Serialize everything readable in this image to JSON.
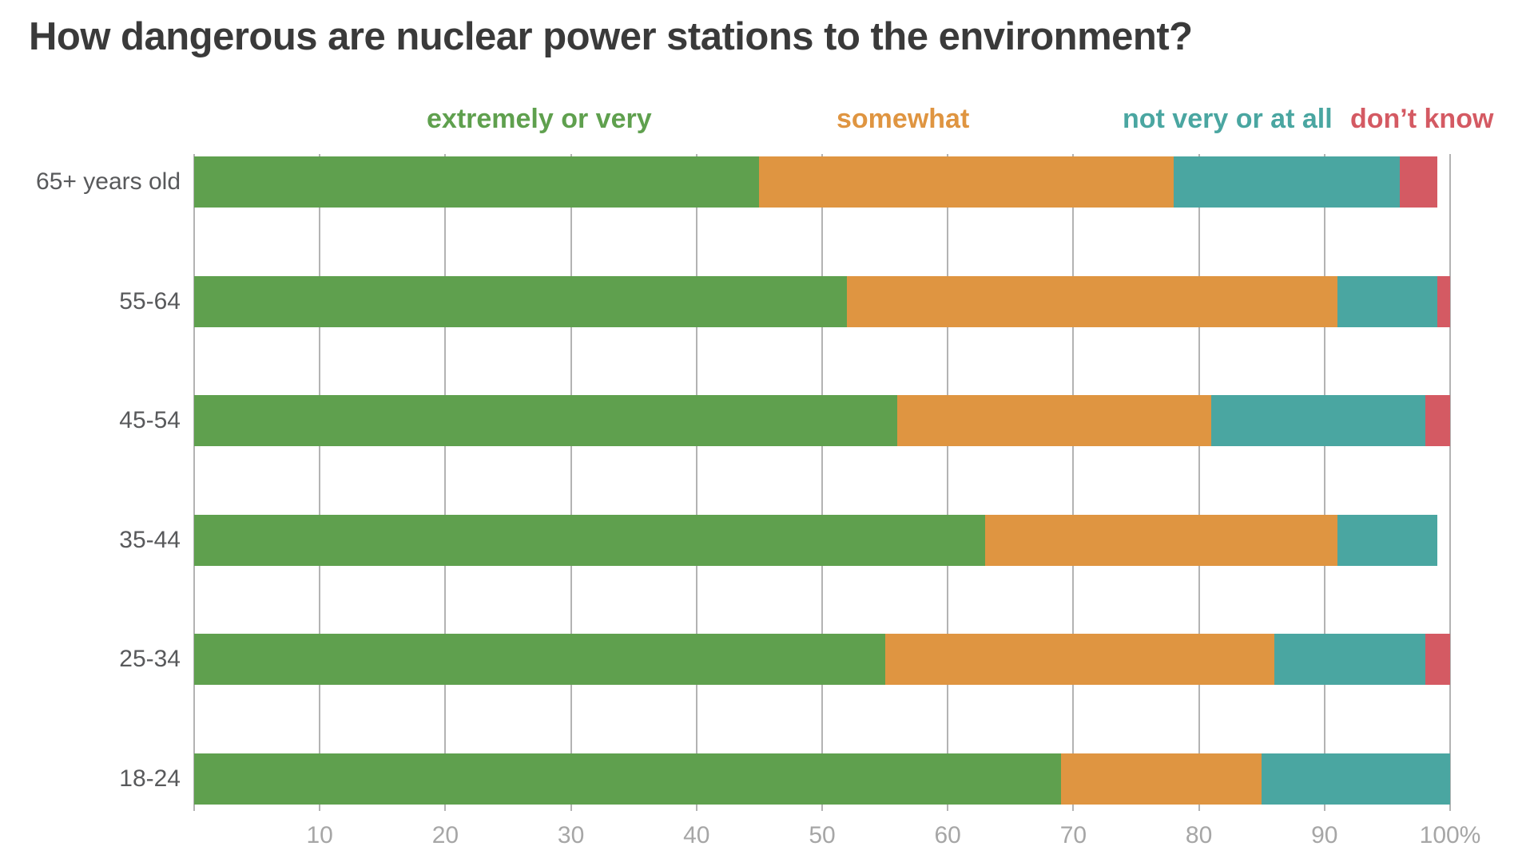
{
  "title": "How dangerous are nuclear power stations to the environment?",
  "chart_data": {
    "type": "bar",
    "orientation": "horizontal",
    "stacked": true,
    "title": "How dangerous are nuclear power stations to the environment?",
    "categories": [
      "65+ years old",
      "55-64",
      "45-54",
      "35-44",
      "25-34",
      "18-24"
    ],
    "series": [
      {
        "name": "extremely or very",
        "color": "#5fa04e",
        "values": [
          45,
          52,
          56,
          63,
          55,
          69
        ]
      },
      {
        "name": "somewhat",
        "color": "#df9541",
        "values": [
          33,
          39,
          25,
          28,
          31,
          16
        ]
      },
      {
        "name": "not very or at all",
        "color": "#4aa6a1",
        "values": [
          18,
          8,
          17,
          8,
          12,
          15
        ]
      },
      {
        "name": "don’t know",
        "color": "#d45a63",
        "values": [
          3,
          1,
          2,
          0,
          2,
          0
        ]
      }
    ],
    "xlabel": "",
    "ylabel": "",
    "xlim": [
      0,
      100
    ],
    "x_ticks": [
      10,
      20,
      30,
      40,
      50,
      60,
      70,
      80,
      90,
      100
    ],
    "x_tick_labels": [
      "10",
      "20",
      "30",
      "40",
      "50",
      "60",
      "70",
      "80",
      "90",
      "100%"
    ],
    "gridlines_at": [
      0,
      10,
      20,
      30,
      40,
      50,
      60,
      70,
      80,
      90,
      100
    ],
    "grid": true,
    "legend_position": "top"
  },
  "colors": {
    "title_text": "#3a3a3a",
    "category_label_text": "#58595b",
    "tick_label_text": "#a6a6a6",
    "gridline": "#b3b3b3",
    "background": "#ffffff"
  }
}
